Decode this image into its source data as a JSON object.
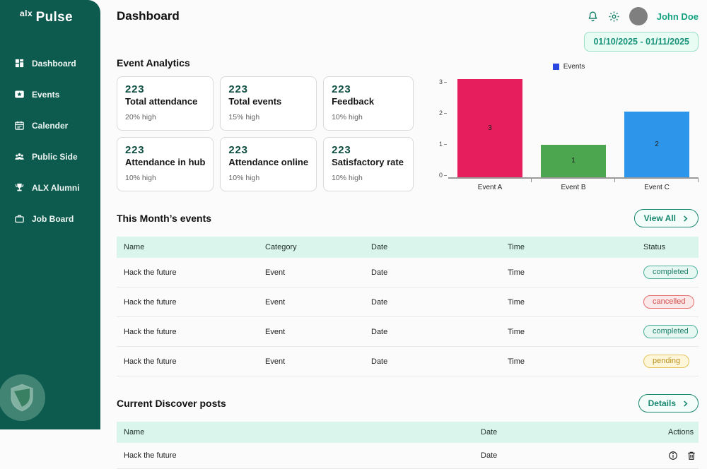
{
  "sidebar": {
    "brand_prefix": "alx",
    "brand_name": "Pulse",
    "items": [
      {
        "label": "Dashboard",
        "icon": "dashboard-grid-icon"
      },
      {
        "label": "Events",
        "icon": "star-badge-icon"
      },
      {
        "label": "Calender",
        "icon": "calendar-icon"
      },
      {
        "label": "Public Side",
        "icon": "people-icon"
      },
      {
        "label": "ALX Alumni",
        "icon": "trophy-icon"
      },
      {
        "label": "Job Board",
        "icon": "briefcase-icon"
      }
    ]
  },
  "header": {
    "title": "Dashboard",
    "user_name": "John Doe",
    "date_range": "01/10/2025 - 01/11/2025",
    "icons": [
      "bell-icon",
      "gear-icon"
    ]
  },
  "analytics": {
    "title": "Event Analytics",
    "cards": [
      {
        "value": "223",
        "label": "Total attendance",
        "delta": "20% high"
      },
      {
        "value": "223",
        "label": "Total events",
        "delta": "15% high"
      },
      {
        "value": "223",
        "label": "Feedback",
        "delta": "10% high"
      },
      {
        "value": "223",
        "label": "Attendance in hub",
        "delta": "10% high"
      },
      {
        "value": "223",
        "label": "Attendance online",
        "delta": "10% high"
      },
      {
        "value": "223",
        "label": "Satisfactory rate",
        "delta": "10% high"
      }
    ]
  },
  "chart_data": {
    "type": "bar",
    "title": "",
    "legend": [
      {
        "name": "Events",
        "color": "#2a46e0"
      }
    ],
    "legend_position": "top",
    "categories": [
      "Event A",
      "Event B",
      "Event C"
    ],
    "series": [
      {
        "name": "Events",
        "values": [
          3,
          1,
          2
        ]
      }
    ],
    "bar_colors": [
      "#e61e5e",
      "#4ba64f",
      "#2e96ea"
    ],
    "ylim": [
      0,
      3
    ],
    "yticks": [
      0,
      1,
      2,
      3
    ],
    "grid": false
  },
  "events_section": {
    "title": "This Month’s events",
    "view_all_label": "View All",
    "columns": [
      "Name",
      "Category",
      "Date",
      "Time",
      "Status"
    ],
    "rows": [
      {
        "name": "Hack the future",
        "category": "Event",
        "date": "Date",
        "time": "Time",
        "status": "completed"
      },
      {
        "name": "Hack the future",
        "category": "Event",
        "date": "Date",
        "time": "Time",
        "status": "cancelled"
      },
      {
        "name": "Hack the future",
        "category": "Event",
        "date": "Date",
        "time": "Time",
        "status": "completed"
      },
      {
        "name": "Hack the future",
        "category": "Event",
        "date": "Date",
        "time": "Time",
        "status": "pending"
      }
    ]
  },
  "discover_section": {
    "title": "Current Discover posts",
    "details_label": "Details",
    "columns": [
      "Name",
      "Date",
      "Actions"
    ],
    "rows": [
      {
        "name": "Hack the future",
        "date": "Date",
        "actions": [
          "info-icon",
          "trash-icon"
        ]
      }
    ]
  },
  "colors": {
    "sidebar_bg": "#0d5b4f",
    "accent_teal": "#17886f",
    "card_value": "#0e4d41",
    "table_header_bg": "#daf6ec",
    "badge_completed": "#1d816c",
    "badge_cancelled": "#d34c4c",
    "badge_pending": "#bd8f1e"
  }
}
